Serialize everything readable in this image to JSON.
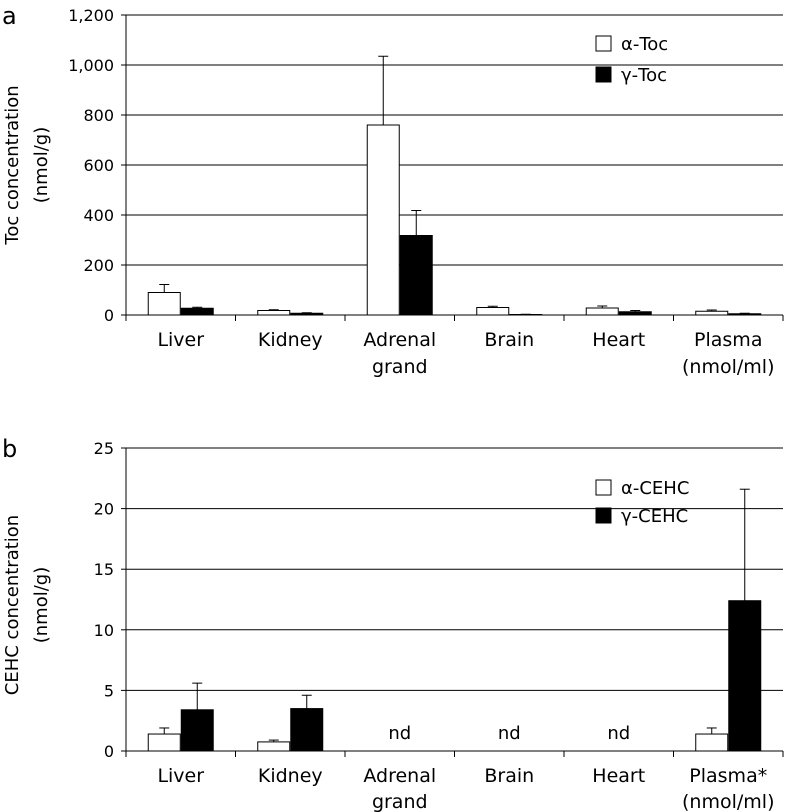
{
  "chart_data": [
    {
      "type": "bar",
      "panel_label": "a",
      "ylabel": [
        "Toc concentration",
        "(nmol/g)"
      ],
      "ylim": [
        0,
        1200
      ],
      "yticks": [
        0,
        200,
        400,
        600,
        800,
        1000,
        1200
      ],
      "ytick_labels": [
        "0",
        "200",
        "400",
        "600",
        "800",
        "1,000",
        "1,200"
      ],
      "grid": true,
      "legend_position": "top-right",
      "categories": [
        [
          "Liver"
        ],
        [
          "Kidney"
        ],
        [
          "Adrenal",
          "grand"
        ],
        [
          "Brain"
        ],
        [
          "Heart"
        ],
        [
          "Plasma",
          "(nmol/ml)"
        ]
      ],
      "series": [
        {
          "name": "α-Toc",
          "fill": "#ffffff",
          "values": [
            90,
            18,
            760,
            30,
            28,
            15
          ],
          "errors": [
            32,
            3,
            275,
            5,
            8,
            5
          ]
        },
        {
          "name": "γ-Toc",
          "fill": "#000000",
          "values": [
            27,
            7,
            318,
            2,
            13,
            5
          ],
          "errors": [
            4,
            2,
            100,
            1,
            5,
            2
          ]
        }
      ],
      "annotations": []
    },
    {
      "type": "bar",
      "panel_label": "b",
      "ylabel": [
        "CEHC concentration",
        "(nmol/g)"
      ],
      "ylim": [
        0,
        25
      ],
      "yticks": [
        0,
        5,
        10,
        15,
        20,
        25
      ],
      "ytick_labels": [
        "0",
        "5",
        "10",
        "15",
        "20",
        "25"
      ],
      "grid": true,
      "legend_position": "top-right",
      "categories": [
        [
          "Liver"
        ],
        [
          "Kidney"
        ],
        [
          "Adrenal",
          "grand"
        ],
        [
          "Brain"
        ],
        [
          "Heart"
        ],
        [
          "Plasma*",
          "(nmol/ml)"
        ]
      ],
      "series": [
        {
          "name": "α-CEHC",
          "fill": "#ffffff",
          "values": [
            1.4,
            0.75,
            null,
            null,
            null,
            1.4
          ],
          "errors": [
            0.5,
            0.15,
            null,
            null,
            null,
            0.5
          ]
        },
        {
          "name": "γ-CEHC",
          "fill": "#000000",
          "values": [
            3.4,
            3.5,
            null,
            null,
            null,
            12.4
          ],
          "errors": [
            2.2,
            1.1,
            null,
            null,
            null,
            9.2
          ]
        }
      ],
      "annotations": [
        {
          "category_index": 2,
          "text": "nd"
        },
        {
          "category_index": 3,
          "text": "nd"
        },
        {
          "category_index": 4,
          "text": "nd"
        }
      ]
    }
  ]
}
